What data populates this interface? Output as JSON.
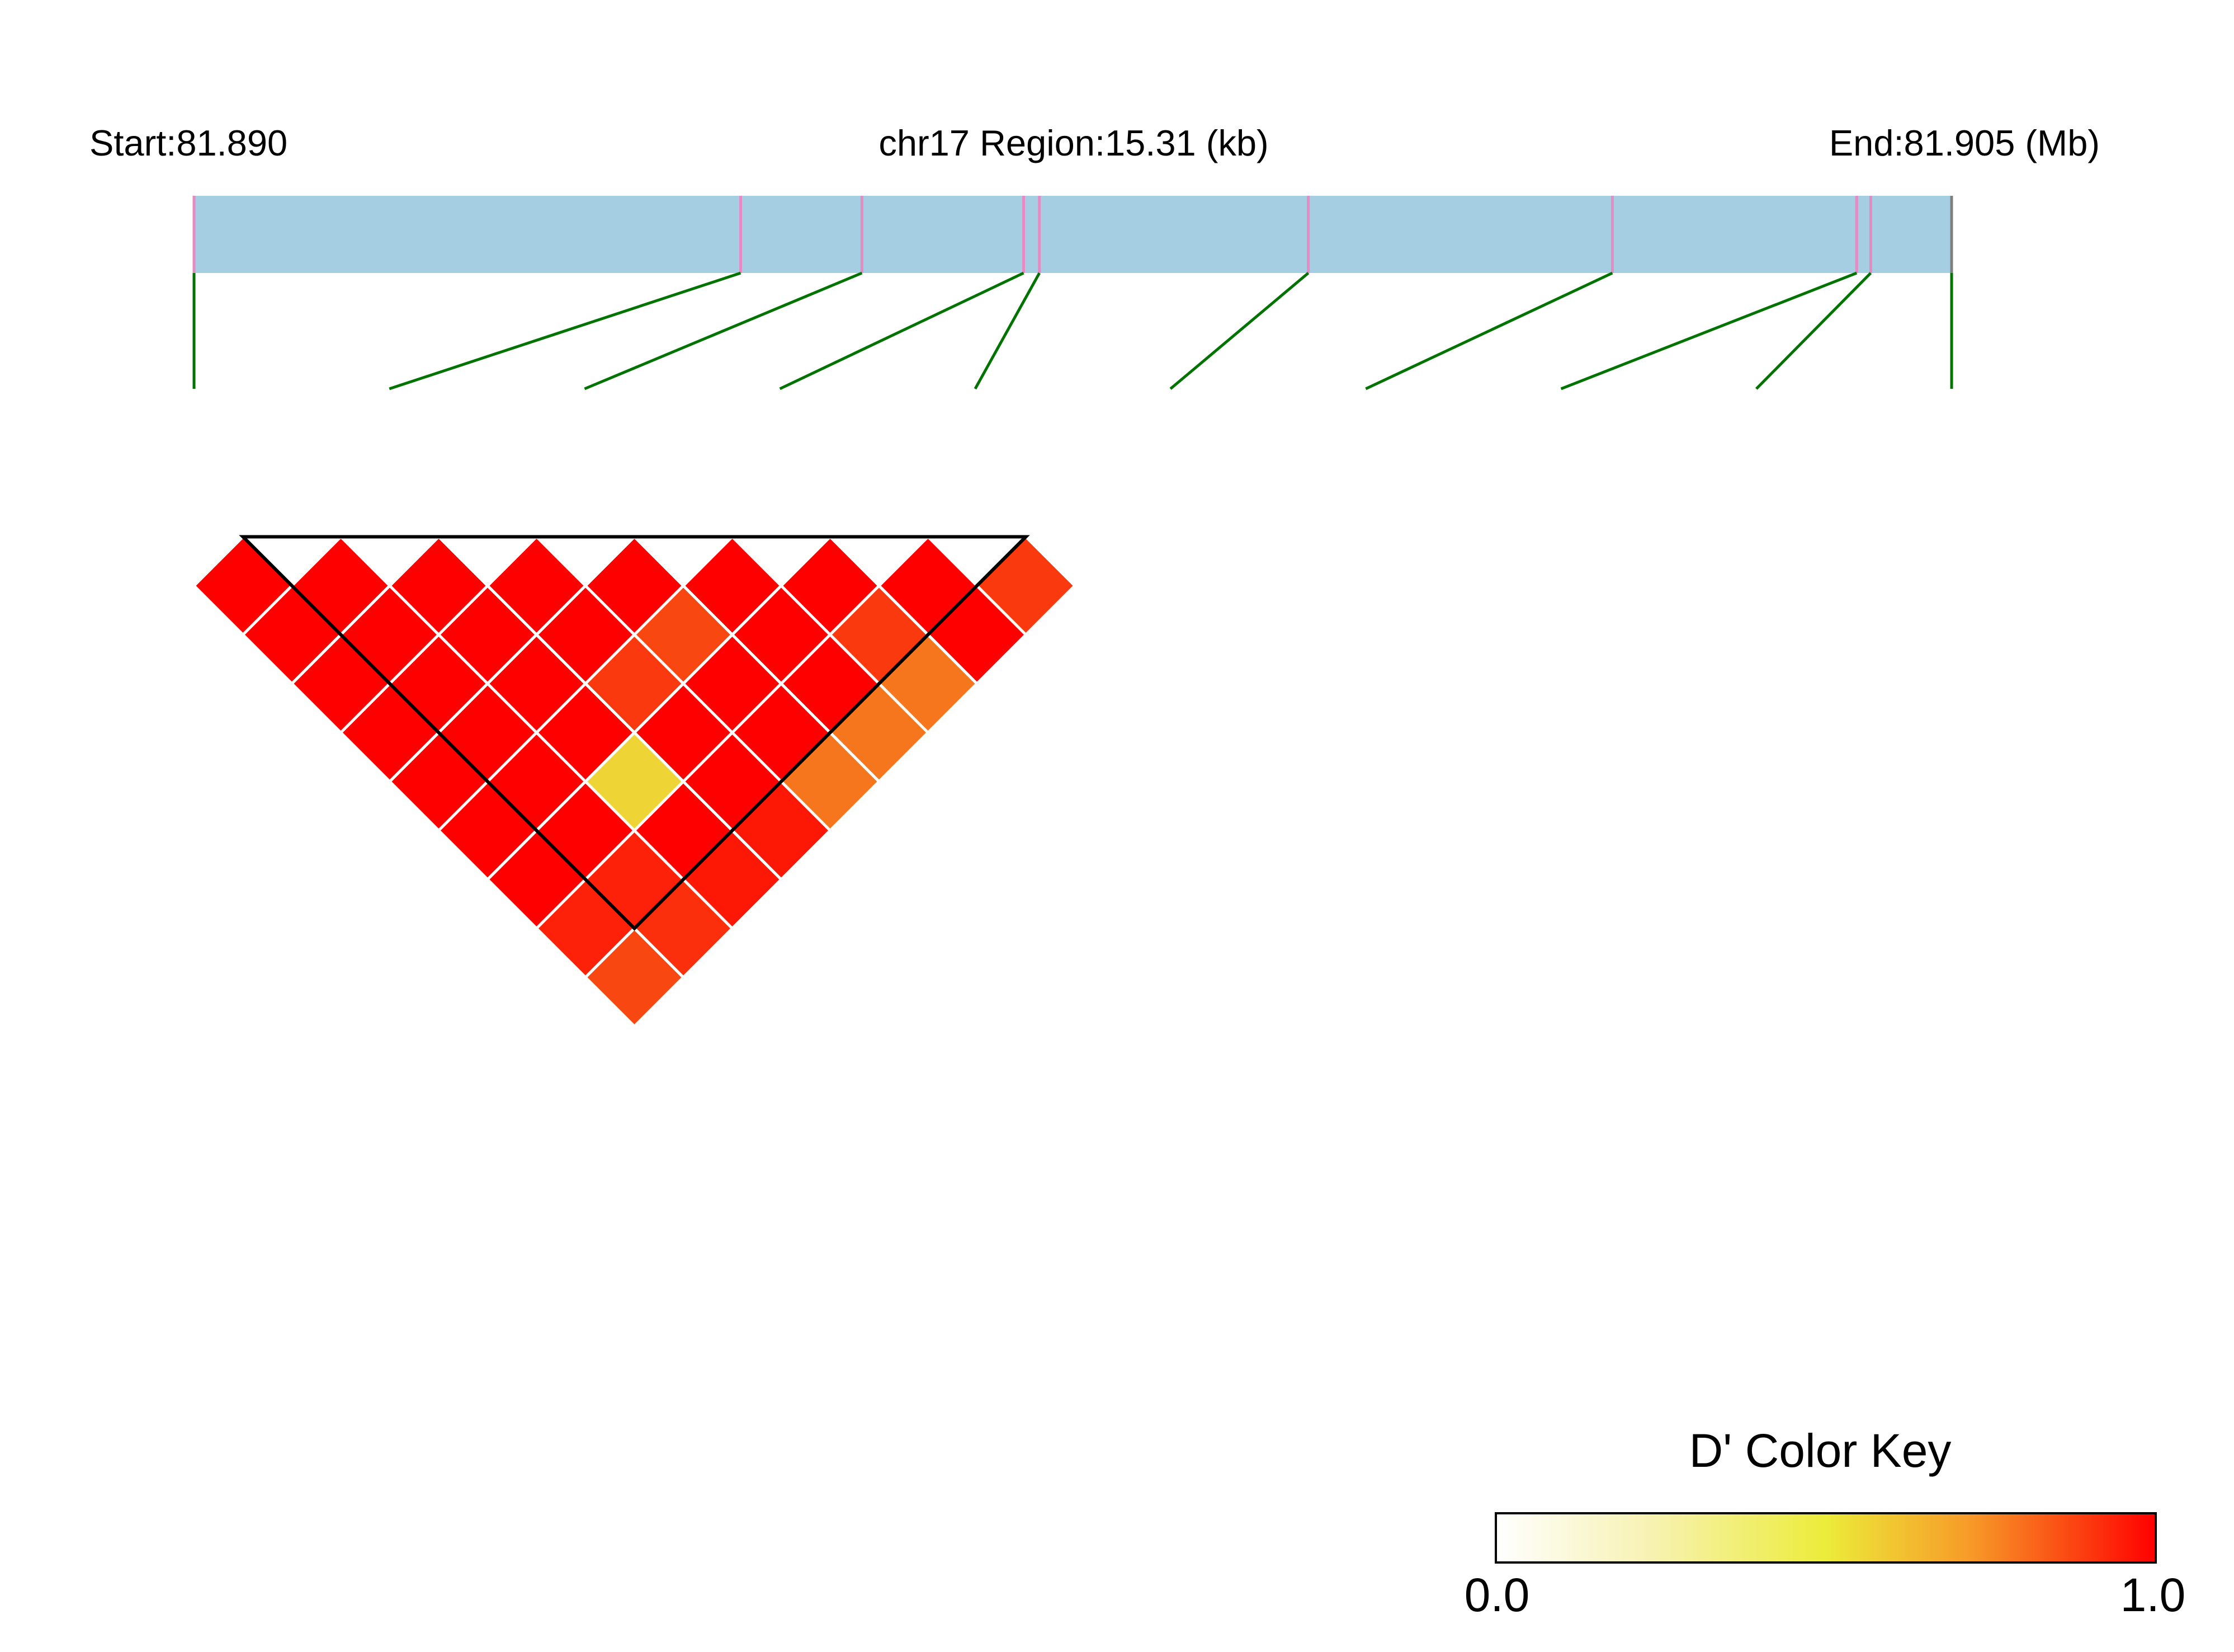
{
  "chart_data": {
    "type": "heatmap",
    "title": "",
    "header": {
      "start_label": "Start:81.890",
      "region_label": "chr17 Region:15.31 (kb)",
      "end_label": "End:81.905 (Mb)"
    },
    "region": {
      "start_mb": 81.89,
      "end_mb": 81.905,
      "length_kb": 15.31
    },
    "snp_count": 10,
    "snp_relative_positions": [
      0.0,
      0.311,
      0.38,
      0.472,
      0.481,
      0.634,
      0.807,
      0.946,
      0.954,
      1.0
    ],
    "ld_matrix_dprime": [
      [
        1.0,
        1.0,
        1.0,
        1.0,
        1.0,
        1.0,
        1.0,
        0.93,
        0.85
      ],
      [
        1.0,
        1.0,
        1.0,
        1.0,
        1.0,
        1.0,
        0.93,
        0.9
      ],
      [
        1.0,
        1.0,
        1.0,
        1.0,
        0.55,
        1.0,
        0.95
      ],
      [
        1.0,
        1.0,
        0.88,
        1.0,
        1.0,
        0.95
      ],
      [
        1.0,
        0.85,
        1.0,
        1.0,
        0.75
      ],
      [
        1.0,
        1.0,
        1.0,
        0.75
      ],
      [
        1.0,
        0.88,
        0.75
      ],
      [
        1.0,
        1.0
      ],
      [
        0.88
      ]
    ],
    "block_outline": {
      "first_snp": 1,
      "last_snp": 9
    },
    "color_key": {
      "title": "D' Color Key",
      "min_label": "0.0",
      "max_label": "1.0",
      "range": [
        0.0,
        1.0
      ],
      "colors": {
        "low": "#ffffff",
        "mid": "#ecec3a",
        "high": "#ff0000"
      }
    },
    "colors": {
      "gene_bar": "#a6cee3",
      "snp_tick": "#e78ac3",
      "connector": "#007300",
      "cell_border": "#ffffff",
      "block_outline": "#000000"
    }
  }
}
